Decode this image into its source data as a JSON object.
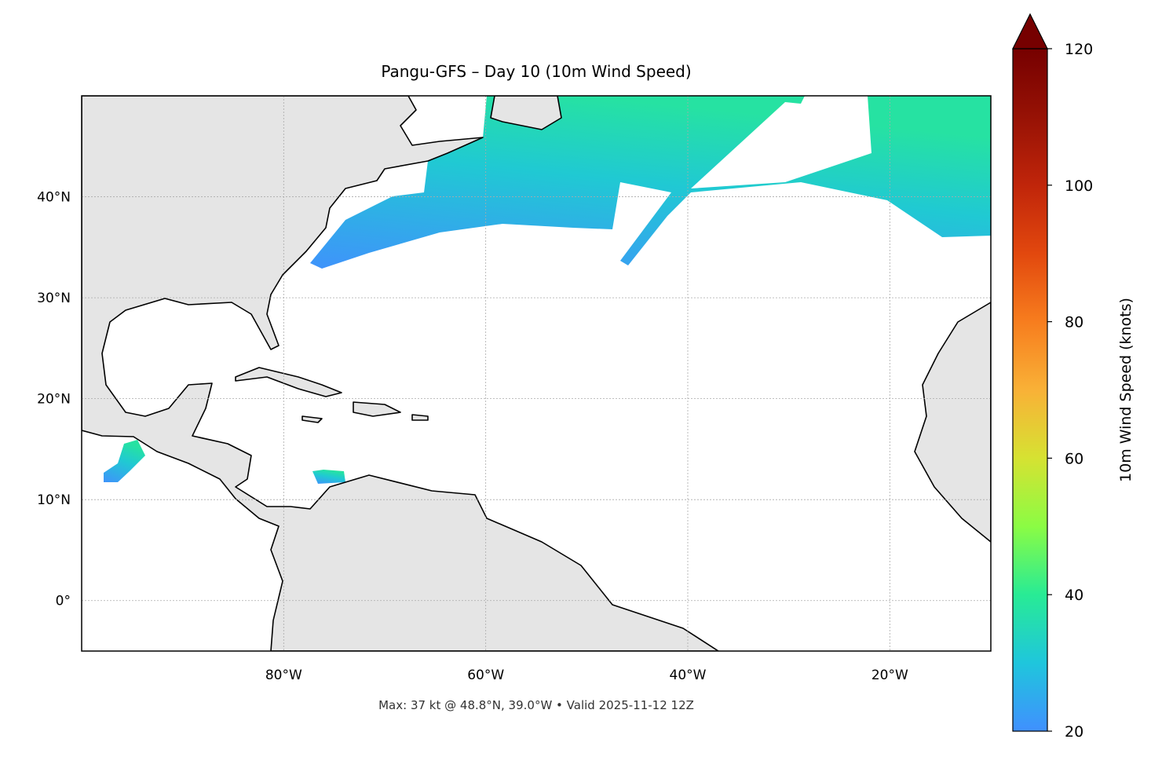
{
  "chart_data": {
    "type": "map",
    "title": "Pangu-GFS – Day 10 (10m Wind Speed)",
    "footer": "Max: 37 kt @ 48.8°N, 39.0°W • Valid 2025-11-12 12Z",
    "xlim": [
      -100,
      -10
    ],
    "ylim": [
      -5,
      50
    ],
    "xticks": [
      {
        "value": -80,
        "label": "80°W"
      },
      {
        "value": -60,
        "label": "60°W"
      },
      {
        "value": -40,
        "label": "40°W"
      },
      {
        "value": -20,
        "label": "20°W"
      }
    ],
    "yticks": [
      {
        "value": 0,
        "label": "0°"
      },
      {
        "value": 10,
        "label": "10°N"
      },
      {
        "value": 20,
        "label": "20°N"
      },
      {
        "value": 30,
        "label": "30°N"
      },
      {
        "value": 40,
        "label": "40°N"
      }
    ],
    "grid": true,
    "colorbar": {
      "label": "10m Wind Speed (knots)",
      "lim": [
        20,
        120
      ],
      "ticks": [
        20,
        40,
        60,
        80,
        100,
        120
      ],
      "extend": "max",
      "colors": [
        "#4090ff",
        "#1fc6dc",
        "#28eb95",
        "#8bfc44",
        "#d6e232",
        "#f9b137",
        "#f77d1e",
        "#e2480e",
        "#c0250a",
        "#971205",
        "#760000"
      ]
    }
  }
}
